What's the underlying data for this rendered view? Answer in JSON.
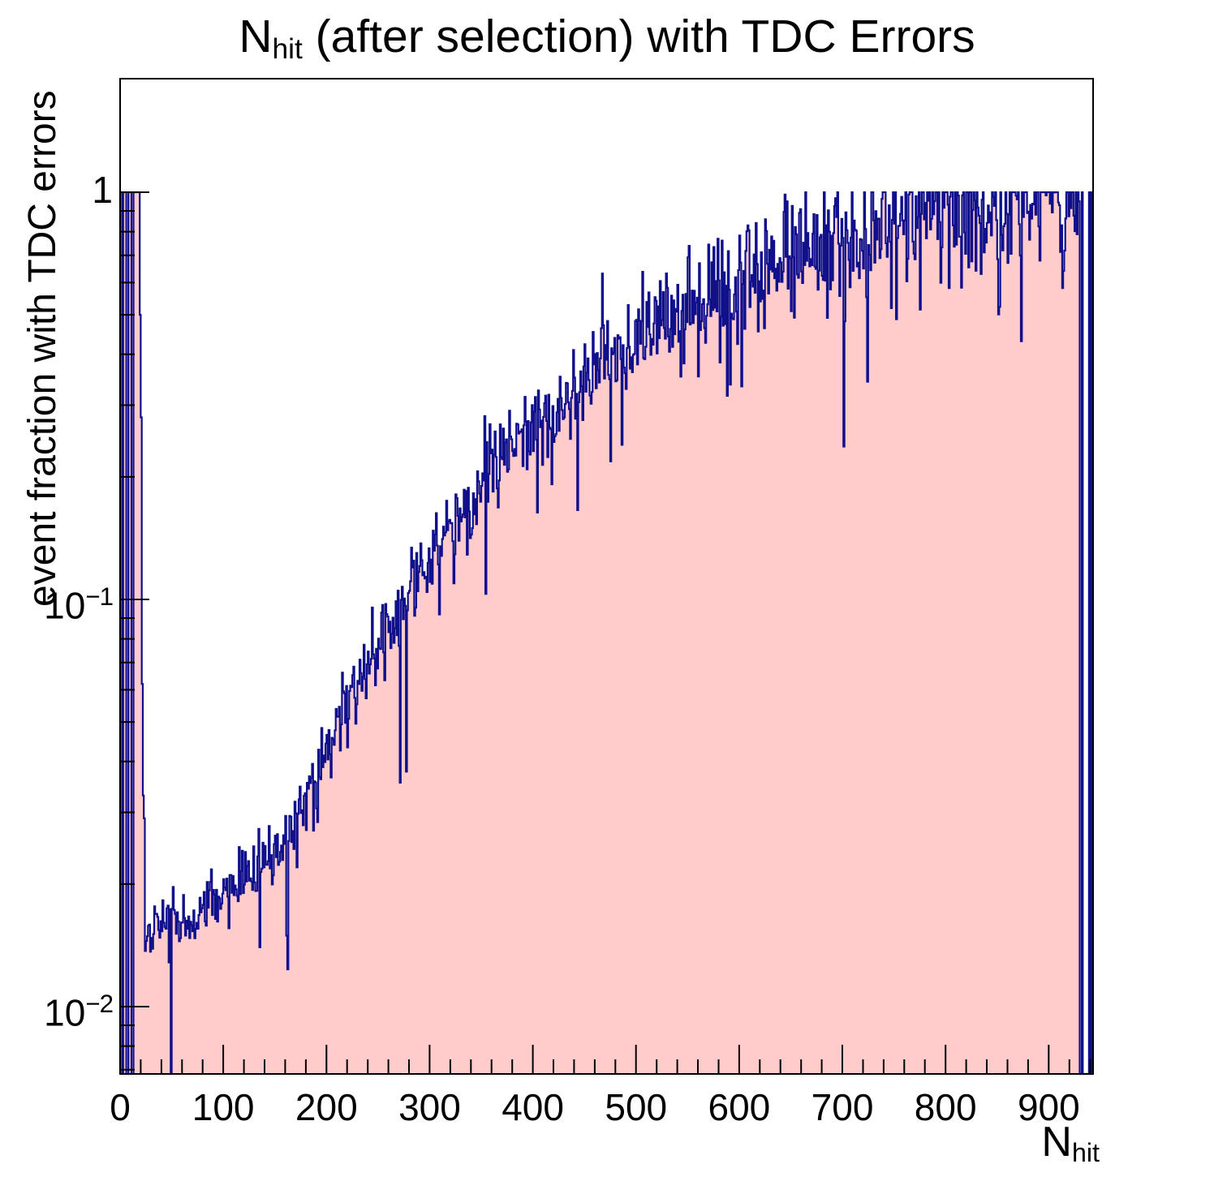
{
  "title": {
    "prefix": "N",
    "sub": "hit",
    "rest": " (after selection) with TDC Errors"
  },
  "x_axis": {
    "title_prefix": "N",
    "title_sub": "hit",
    "major_tick_labels": [
      "0",
      "100",
      "200",
      "300",
      "400",
      "500",
      "600",
      "700",
      "800",
      "900"
    ],
    "major_tick_values": [
      0,
      100,
      200,
      300,
      400,
      500,
      600,
      700,
      800,
      900
    ],
    "minor_tick_step": 20,
    "range": [
      0,
      943
    ]
  },
  "y_axis": {
    "title": "event fraction with TDC errors",
    "scale": "log",
    "range": [
      0.00683,
      1.9
    ],
    "major_ticks": [
      {
        "label": "1",
        "value": 1
      },
      {
        "base": "10",
        "exp": "−1",
        "value": 0.1
      },
      {
        "base": "10",
        "exp": "−2",
        "value": 0.01
      }
    ]
  },
  "colors": {
    "fill": "#ffcbcb",
    "line": "#10108c",
    "frame": "#000000",
    "text": "#000000",
    "background": "#ffffff"
  },
  "chart_data": {
    "type": "bar",
    "title": "N_hit (after selection) with TDC Errors",
    "xlabel": "N_hit",
    "ylabel": "event fraction with TDC errors",
    "xlim": [
      0,
      943
    ],
    "ylim": [
      0.00683,
      1.9
    ],
    "grid": false,
    "legend": false,
    "bin_width": 1,
    "bin_count": 943,
    "left_cluster_bins": {
      "start": 0,
      "values": [
        1,
        1,
        0,
        1,
        1,
        1,
        0,
        0,
        1,
        1,
        1,
        0,
        0,
        1,
        1,
        1,
        1,
        1,
        1,
        0.5,
        0.28,
        0.062,
        0.033,
        0.029,
        0.0137,
        0.0145
      ]
    },
    "right_tail_bins": {
      "start": 929,
      "values": [
        0.95,
        0,
        0,
        1,
        0,
        0,
        0,
        0,
        0,
        0,
        1,
        0,
        1,
        0
      ]
    },
    "trend_anchors": [
      [
        26,
        0.0145
      ],
      [
        40,
        0.0165
      ],
      [
        50,
        0.018
      ],
      [
        60,
        0.016
      ],
      [
        70,
        0.017
      ],
      [
        80,
        0.018
      ],
      [
        100,
        0.019
      ],
      [
        120,
        0.021
      ],
      [
        140,
        0.0235
      ],
      [
        160,
        0.025
      ],
      [
        180,
        0.033
      ],
      [
        200,
        0.042
      ],
      [
        220,
        0.055
      ],
      [
        240,
        0.068
      ],
      [
        260,
        0.084
      ],
      [
        280,
        0.102
      ],
      [
        300,
        0.125
      ],
      [
        320,
        0.15
      ],
      [
        340,
        0.17
      ],
      [
        360,
        0.21
      ],
      [
        380,
        0.24
      ],
      [
        400,
        0.26
      ],
      [
        420,
        0.29
      ],
      [
        440,
        0.31
      ],
      [
        460,
        0.36
      ],
      [
        480,
        0.41
      ],
      [
        500,
        0.44
      ],
      [
        520,
        0.47
      ],
      [
        540,
        0.52
      ],
      [
        560,
        0.55
      ],
      [
        580,
        0.58
      ],
      [
        600,
        0.61
      ],
      [
        620,
        0.64
      ],
      [
        640,
        0.67
      ],
      [
        660,
        0.7
      ],
      [
        680,
        0.73
      ],
      [
        700,
        0.76
      ],
      [
        720,
        0.8
      ],
      [
        740,
        0.83
      ],
      [
        760,
        0.85
      ],
      [
        780,
        0.88
      ],
      [
        800,
        0.9
      ],
      [
        820,
        0.92
      ],
      [
        840,
        0.945
      ],
      [
        860,
        0.955
      ],
      [
        880,
        0.965
      ],
      [
        900,
        0.975
      ],
      [
        928,
        0.985
      ]
    ],
    "noise": {
      "seed": 1234567,
      "sigma_log10_base": 0.03,
      "sigma_log10_slope": 0.07,
      "dip_probability": 0.025,
      "dip_factor_range": [
        0.35,
        0.7
      ],
      "clip_max": 1.0
    }
  }
}
